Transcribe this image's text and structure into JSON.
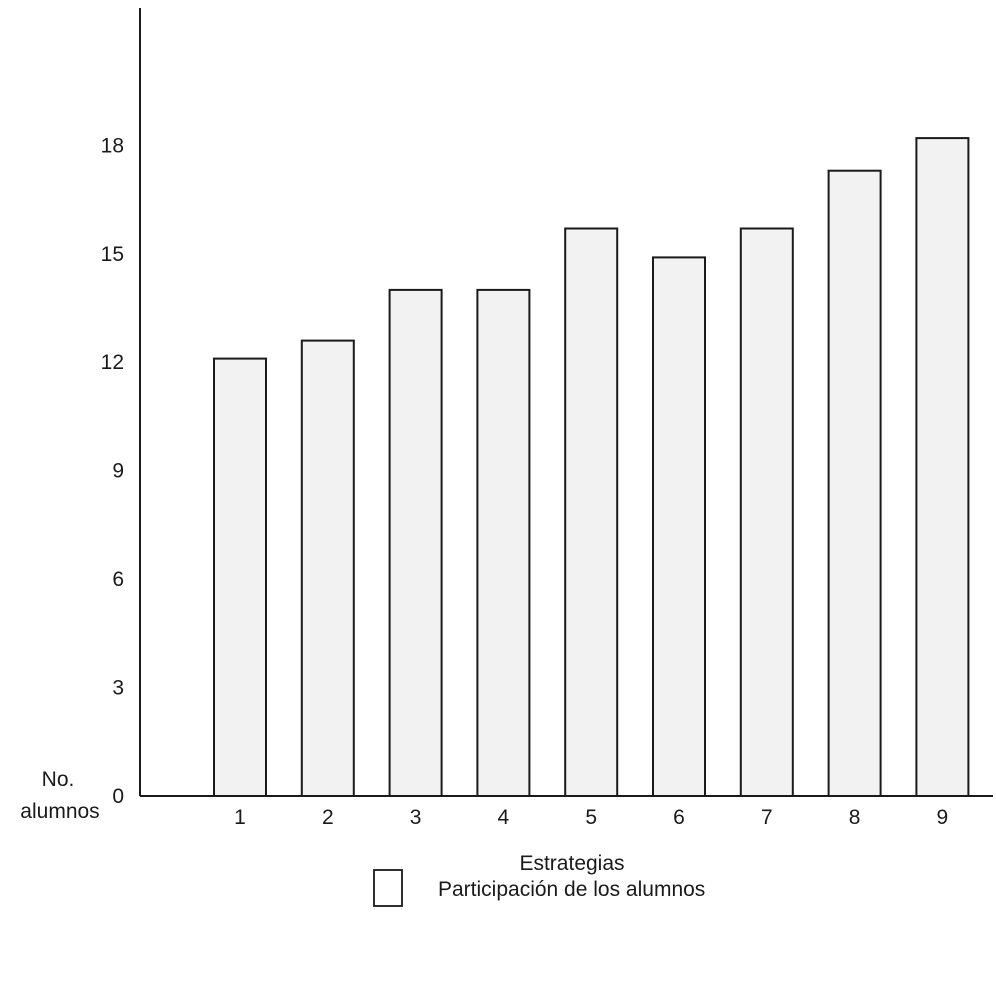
{
  "chart_data": {
    "type": "bar",
    "title": "",
    "xlabel": "Estrategias",
    "ylabel_line1": "No.",
    "ylabel_line2": "alumnos",
    "categories": [
      "1",
      "2",
      "3",
      "4",
      "5",
      "6",
      "7",
      "8",
      "9"
    ],
    "series": [
      {
        "name": "Participación de los alumnos",
        "values": [
          12.1,
          12.6,
          14.0,
          14.0,
          15.7,
          14.9,
          15.7,
          17.3,
          18.2
        ]
      }
    ],
    "ylim": [
      0,
      21.8
    ],
    "yticks": [
      0,
      3,
      6,
      9,
      12,
      15,
      18
    ],
    "grid": false,
    "legend_position": "bottom-center",
    "bar_fill": "#f2f2f2",
    "bar_stroke": "#1a1a1a"
  }
}
